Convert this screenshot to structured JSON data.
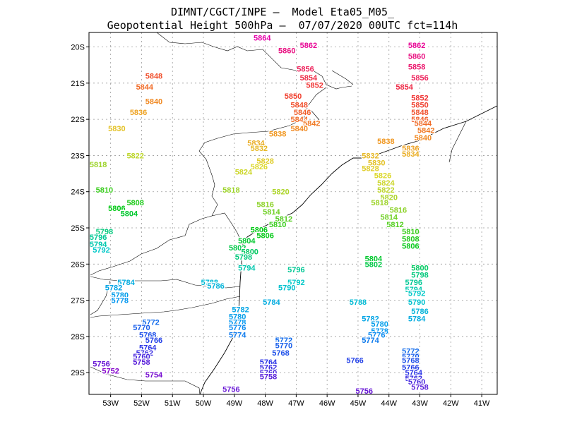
{
  "title": {
    "line1": "DIMNT/CGCT/INPE –  Model Eta05_M05_",
    "line2": "Geopotential Height 500hPa –  07/07/2020 00UTC fct=114h"
  },
  "axes": {
    "lon_range": [
      -53.7,
      -40.5
    ],
    "lat_range": [
      -29.6,
      -19.6
    ],
    "x_ticks": [
      "53W",
      "52W",
      "51W",
      "50W",
      "49W",
      "48W",
      "47W",
      "46W",
      "45W",
      "44W",
      "43W",
      "42W",
      "41W"
    ],
    "x_tick_values": [
      -53,
      -52,
      -51,
      -50,
      -49,
      -48,
      -47,
      -46,
      -45,
      -44,
      -43,
      -42,
      -41
    ],
    "y_ticks": [
      "20S",
      "21S",
      "22S",
      "23S",
      "24S",
      "25S",
      "26S",
      "27S",
      "28S",
      "29S"
    ],
    "y_tick_values": [
      -20,
      -21,
      -22,
      -23,
      -24,
      -25,
      -26,
      -27,
      -28,
      -29
    ]
  },
  "contours": {
    "min": 5750,
    "max": 5864,
    "step": 2,
    "levels_labeled": [
      "5864",
      "5862",
      "5860",
      "5858",
      "5856",
      "5854",
      "5852",
      "5850",
      "5848",
      "5846",
      "5844",
      "5842",
      "5840",
      "5838",
      "5836",
      "5834",
      "5832",
      "5830",
      "5828",
      "5826",
      "5824",
      "5822",
      "5820",
      "5818",
      "5816",
      "5814",
      "5812",
      "5810",
      "5808",
      "5806",
      "5804",
      "5802",
      "5800",
      "5798",
      "5796",
      "5794",
      "5792",
      "5790",
      "5788",
      "5786",
      "5784",
      "5782",
      "5780",
      "5778",
      "5776",
      "5774",
      "5772",
      "5770",
      "5768",
      "5766",
      "5764",
      "5762",
      "5760",
      "5758",
      "5756",
      "5754",
      "5752"
    ]
  },
  "labels": [
    {
      "text": "5862",
      "lon": -46.6,
      "lat": -19.95
    },
    {
      "text": "5862",
      "lon": -43.1,
      "lat": -19.95
    },
    {
      "text": "5860",
      "lon": -47.3,
      "lat": -20.1
    },
    {
      "text": "5860",
      "lon": -43.1,
      "lat": -20.25
    },
    {
      "text": "5858",
      "lon": -43.1,
      "lat": -20.55
    },
    {
      "text": "5856",
      "lon": -46.7,
      "lat": -20.6
    },
    {
      "text": "5856",
      "lon": -43.0,
      "lat": -20.85
    },
    {
      "text": "5854",
      "lon": -46.6,
      "lat": -20.85
    },
    {
      "text": "5854",
      "lon": -43.5,
      "lat": -21.1
    },
    {
      "text": "5852",
      "lon": -46.4,
      "lat": -21.05
    },
    {
      "text": "5852",
      "lon": -43.0,
      "lat": -21.4
    },
    {
      "text": "5850",
      "lon": -47.1,
      "lat": -21.35
    },
    {
      "text": "5850",
      "lon": -43.0,
      "lat": -21.6
    },
    {
      "text": "5848",
      "lon": -51.6,
      "lat": -20.8
    },
    {
      "text": "5848",
      "lon": -46.9,
      "lat": -21.6
    },
    {
      "text": "5848",
      "lon": -43.0,
      "lat": -21.8
    },
    {
      "text": "5846",
      "lon": -46.8,
      "lat": -21.8
    },
    {
      "text": "5846",
      "lon": -43.0,
      "lat": -22.0
    },
    {
      "text": "5844",
      "lon": -51.9,
      "lat": -21.1
    },
    {
      "text": "5844",
      "lon": -46.9,
      "lat": -22.0
    },
    {
      "text": "5844",
      "lon": -42.9,
      "lat": -22.1
    },
    {
      "text": "5842",
      "lon": -46.5,
      "lat": -22.1
    },
    {
      "text": "5842",
      "lon": -42.8,
      "lat": -22.3
    },
    {
      "text": "5840",
      "lon": -51.6,
      "lat": -21.5
    },
    {
      "text": "5840",
      "lon": -46.9,
      "lat": -22.25
    },
    {
      "text": "5840",
      "lon": -42.9,
      "lat": -22.5
    },
    {
      "text": "5838",
      "lon": -47.6,
      "lat": -22.4
    },
    {
      "text": "5838",
      "lon": -44.1,
      "lat": -22.6
    },
    {
      "text": "5836",
      "lon": -52.1,
      "lat": -21.8
    },
    {
      "text": "5836",
      "lon": -43.3,
      "lat": -22.8
    },
    {
      "text": "5834",
      "lon": -48.3,
      "lat": -22.65
    },
    {
      "text": "5834",
      "lon": -43.3,
      "lat": -22.95
    },
    {
      "text": "5832",
      "lon": -48.2,
      "lat": -22.8
    },
    {
      "text": "5832",
      "lon": -44.6,
      "lat": -23.0
    },
    {
      "text": "5830",
      "lon": -52.8,
      "lat": -22.25
    },
    {
      "text": "5830",
      "lon": -44.4,
      "lat": -23.2
    },
    {
      "text": "5828",
      "lon": -48.0,
      "lat": -23.15
    },
    {
      "text": "5828",
      "lon": -44.6,
      "lat": -23.35
    },
    {
      "text": "5826",
      "lon": -48.2,
      "lat": -23.3
    },
    {
      "text": "5826",
      "lon": -44.2,
      "lat": -23.55
    },
    {
      "text": "5824",
      "lon": -48.7,
      "lat": -23.45
    },
    {
      "text": "5824",
      "lon": -44.1,
      "lat": -23.75
    },
    {
      "text": "5822",
      "lon": -52.2,
      "lat": -23.0
    },
    {
      "text": "5822",
      "lon": -44.1,
      "lat": -23.95
    },
    {
      "text": "5820",
      "lon": -47.5,
      "lat": -24.0
    },
    {
      "text": "5820",
      "lon": -44.0,
      "lat": -24.15
    },
    {
      "text": "5818",
      "lon": -53.4,
      "lat": -23.25
    },
    {
      "text": "5818",
      "lon": -49.1,
      "lat": -23.95
    },
    {
      "text": "5818",
      "lon": -44.3,
      "lat": -24.3
    },
    {
      "text": "5816",
      "lon": -48.0,
      "lat": -24.35
    },
    {
      "text": "5816",
      "lon": -43.7,
      "lat": -24.5
    },
    {
      "text": "5814",
      "lon": -47.8,
      "lat": -24.55
    },
    {
      "text": "5814",
      "lon": -44.0,
      "lat": -24.7
    },
    {
      "text": "5812",
      "lon": -47.4,
      "lat": -24.75
    },
    {
      "text": "5812",
      "lon": -43.8,
      "lat": -24.9
    },
    {
      "text": "5810",
      "lon": -53.2,
      "lat": -23.95
    },
    {
      "text": "5810",
      "lon": -47.6,
      "lat": -24.9
    },
    {
      "text": "5810",
      "lon": -43.3,
      "lat": -25.1
    },
    {
      "text": "5808",
      "lon": -52.2,
      "lat": -24.3
    },
    {
      "text": "5808",
      "lon": -43.3,
      "lat": -25.3
    },
    {
      "text": "5806",
      "lon": -52.8,
      "lat": -24.45
    },
    {
      "text": "5806",
      "lon": -48.2,
      "lat": -25.05
    },
    {
      "text": "5806",
      "lon": -43.3,
      "lat": -25.5
    },
    {
      "text": "5806",
      "lon": -48.0,
      "lat": -25.2
    },
    {
      "text": "5804",
      "lon": -52.4,
      "lat": -24.6
    },
    {
      "text": "5804",
      "lon": -48.6,
      "lat": -25.35
    },
    {
      "text": "5804",
      "lon": -44.5,
      "lat": -25.85
    },
    {
      "text": "5802",
      "lon": -48.9,
      "lat": -25.55
    },
    {
      "text": "5802",
      "lon": -44.5,
      "lat": -26.0
    },
    {
      "text": "5800",
      "lon": -48.5,
      "lat": -25.65
    },
    {
      "text": "5800",
      "lon": -43.0,
      "lat": -26.1
    },
    {
      "text": "5798",
      "lon": -53.2,
      "lat": -25.1
    },
    {
      "text": "5798",
      "lon": -48.7,
      "lat": -25.8
    },
    {
      "text": "5798",
      "lon": -43.0,
      "lat": -26.3
    },
    {
      "text": "5796",
      "lon": -53.4,
      "lat": -25.25
    },
    {
      "text": "5796",
      "lon": -47.0,
      "lat": -26.15
    },
    {
      "text": "5796",
      "lon": -43.2,
      "lat": -26.5
    },
    {
      "text": "5794",
      "lon": -53.4,
      "lat": -25.45
    },
    {
      "text": "5794",
      "lon": -48.6,
      "lat": -26.1
    },
    {
      "text": "5794",
      "lon": -43.2,
      "lat": -26.7
    },
    {
      "text": "5792",
      "lon": -53.3,
      "lat": -25.6
    },
    {
      "text": "5792",
      "lon": -47.0,
      "lat": -26.5
    },
    {
      "text": "5792",
      "lon": -43.1,
      "lat": -26.8
    },
    {
      "text": "5790",
      "lon": -47.3,
      "lat": -26.65
    },
    {
      "text": "5790",
      "lon": -43.1,
      "lat": -27.05
    },
    {
      "text": "5788",
      "lon": -49.8,
      "lat": -26.5
    },
    {
      "text": "5788",
      "lon": -45.0,
      "lat": -27.05
    },
    {
      "text": "5786",
      "lon": -49.6,
      "lat": -26.6
    },
    {
      "text": "5786",
      "lon": -43.0,
      "lat": -27.3
    },
    {
      "text": "5784",
      "lon": -52.5,
      "lat": -26.5
    },
    {
      "text": "5784",
      "lon": -47.8,
      "lat": -27.05
    },
    {
      "text": "5784",
      "lon": -43.1,
      "lat": -27.5
    },
    {
      "text": "5782",
      "lon": -52.9,
      "lat": -26.65
    },
    {
      "text": "5782",
      "lon": -48.8,
      "lat": -27.25
    },
    {
      "text": "5782",
      "lon": -44.6,
      "lat": -27.5
    },
    {
      "text": "5780",
      "lon": -52.7,
      "lat": -26.85
    },
    {
      "text": "5780",
      "lon": -48.9,
      "lat": -27.45
    },
    {
      "text": "5780",
      "lon": -44.3,
      "lat": -27.65
    },
    {
      "text": "5778",
      "lon": -52.7,
      "lat": -27.0
    },
    {
      "text": "5778",
      "lon": -48.9,
      "lat": -27.6
    },
    {
      "text": "5778",
      "lon": -44.3,
      "lat": -27.85
    },
    {
      "text": "5776",
      "lon": -48.9,
      "lat": -27.75
    },
    {
      "text": "5776",
      "lon": -44.4,
      "lat": -27.95
    },
    {
      "text": "5774",
      "lon": -48.9,
      "lat": -27.95
    },
    {
      "text": "5774",
      "lon": -44.6,
      "lat": -28.1
    },
    {
      "text": "5772",
      "lon": -51.7,
      "lat": -27.6
    },
    {
      "text": "5772",
      "lon": -47.4,
      "lat": -28.1
    },
    {
      "text": "5772",
      "lon": -43.3,
      "lat": -28.4
    },
    {
      "text": "5770",
      "lon": -52.0,
      "lat": -27.75
    },
    {
      "text": "5770",
      "lon": -47.4,
      "lat": -28.25
    },
    {
      "text": "5770",
      "lon": -43.3,
      "lat": -28.55
    },
    {
      "text": "5768",
      "lon": -51.8,
      "lat": -27.95
    },
    {
      "text": "5768",
      "lon": -47.5,
      "lat": -28.45
    },
    {
      "text": "5768",
      "lon": -43.3,
      "lat": -28.65
    },
    {
      "text": "5766",
      "lon": -51.6,
      "lat": -28.1
    },
    {
      "text": "5766",
      "lon": -45.1,
      "lat": -28.65
    },
    {
      "text": "5766",
      "lon": -43.3,
      "lat": -28.85
    },
    {
      "text": "5764",
      "lon": -51.8,
      "lat": -28.3
    },
    {
      "text": "5764",
      "lon": -47.9,
      "lat": -28.7
    },
    {
      "text": "5764",
      "lon": -43.2,
      "lat": -29.0
    },
    {
      "text": "5762",
      "lon": -51.9,
      "lat": -28.45
    },
    {
      "text": "5762",
      "lon": -47.9,
      "lat": -28.85
    },
    {
      "text": "5762",
      "lon": -43.2,
      "lat": -29.15
    },
    {
      "text": "5760",
      "lon": -52.0,
      "lat": -28.55
    },
    {
      "text": "5760",
      "lon": -47.9,
      "lat": -29.0
    },
    {
      "text": "5760",
      "lon": -43.1,
      "lat": -29.25
    },
    {
      "text": "5758",
      "lon": -52.0,
      "lat": -28.7
    },
    {
      "text": "5758",
      "lon": -47.9,
      "lat": -29.1
    },
    {
      "text": "5758",
      "lon": -43.0,
      "lat": -29.4
    },
    {
      "text": "5756",
      "lon": -53.3,
      "lat": -28.75
    },
    {
      "text": "5756",
      "lon": -49.1,
      "lat": -29.45
    },
    {
      "text": "5756",
      "lon": -44.8,
      "lat": -29.5
    },
    {
      "text": "5754",
      "lon": -51.6,
      "lat": -29.05
    },
    {
      "text": "5752",
      "lon": -53.0,
      "lat": -28.95
    },
    {
      "text": "5864",
      "lon": -48.1,
      "lat": -19.75
    }
  ]
}
